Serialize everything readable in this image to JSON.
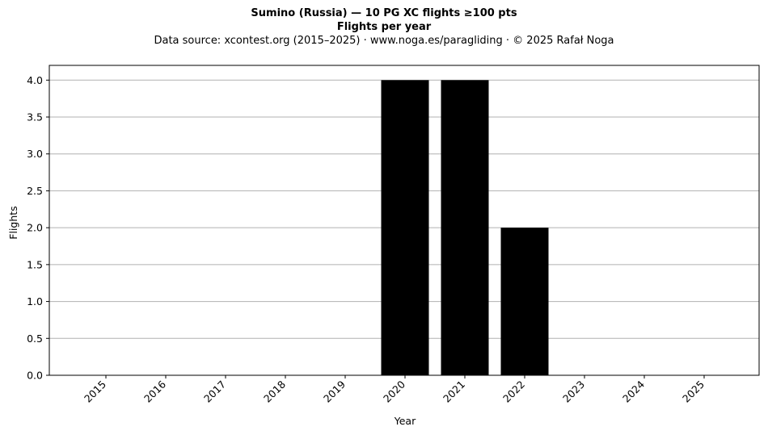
{
  "chart_data": {
    "type": "bar",
    "title": "Sumino (Russia)  —  10 PG XC flights ≥100 pts",
    "subtitle": "Flights per year",
    "source_line": "Data source: xcontest.org (2015–2025)  ·  www.noga.es/paragliding  ·  © 2025 Rafał Noga",
    "categories": [
      "2015",
      "2016",
      "2017",
      "2018",
      "2019",
      "2020",
      "2021",
      "2022",
      "2023",
      "2024",
      "2025"
    ],
    "values": [
      0,
      0,
      0,
      0,
      0,
      4,
      4,
      2,
      0,
      0,
      0
    ],
    "xlabel": "Year",
    "ylabel": "Flights",
    "ylim": [
      0,
      4.2
    ],
    "yticks": [
      "0.0",
      "0.5",
      "1.0",
      "1.5",
      "2.0",
      "2.5",
      "3.0",
      "3.5",
      "4.0"
    ],
    "grid": "horizontal",
    "bar_color": "#000000",
    "grid_color": "#b0b0b0"
  }
}
